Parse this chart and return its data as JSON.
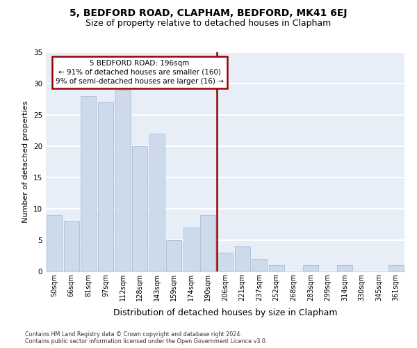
{
  "title1": "5, BEDFORD ROAD, CLAPHAM, BEDFORD, MK41 6EJ",
  "title2": "Size of property relative to detached houses in Clapham",
  "xlabel": "Distribution of detached houses by size in Clapham",
  "ylabel": "Number of detached properties",
  "categories": [
    "50sqm",
    "66sqm",
    "81sqm",
    "97sqm",
    "112sqm",
    "128sqm",
    "143sqm",
    "159sqm",
    "174sqm",
    "190sqm",
    "206sqm",
    "221sqm",
    "237sqm",
    "252sqm",
    "268sqm",
    "283sqm",
    "299sqm",
    "314sqm",
    "330sqm",
    "345sqm",
    "361sqm"
  ],
  "values": [
    9,
    8,
    28,
    27,
    29,
    20,
    22,
    5,
    7,
    9,
    3,
    4,
    2,
    1,
    0,
    1,
    0,
    1,
    0,
    0,
    1
  ],
  "bar_color": "#ccdaeb",
  "bar_edge_color": "#aabdd4",
  "vline_color": "#990000",
  "vline_x": 9.5,
  "annotation_line1": "5 BEDFORD ROAD: 196sqm",
  "annotation_line2": "← 91% of detached houses are smaller (160)",
  "annotation_line3": "9% of semi-detached houses are larger (16) →",
  "annotation_box_facecolor": "white",
  "annotation_box_edgecolor": "#990000",
  "ylim": [
    0,
    35
  ],
  "yticks": [
    0,
    5,
    10,
    15,
    20,
    25,
    30,
    35
  ],
  "bg_color": "#e8eef8",
  "grid_color": "white",
  "title1_fontsize": 10,
  "title2_fontsize": 9,
  "tick_fontsize": 7,
  "ylabel_fontsize": 8,
  "xlabel_fontsize": 9,
  "footer1": "Contains HM Land Registry data © Crown copyright and database right 2024.",
  "footer2": "Contains public sector information licensed under the Open Government Licence v3.0."
}
